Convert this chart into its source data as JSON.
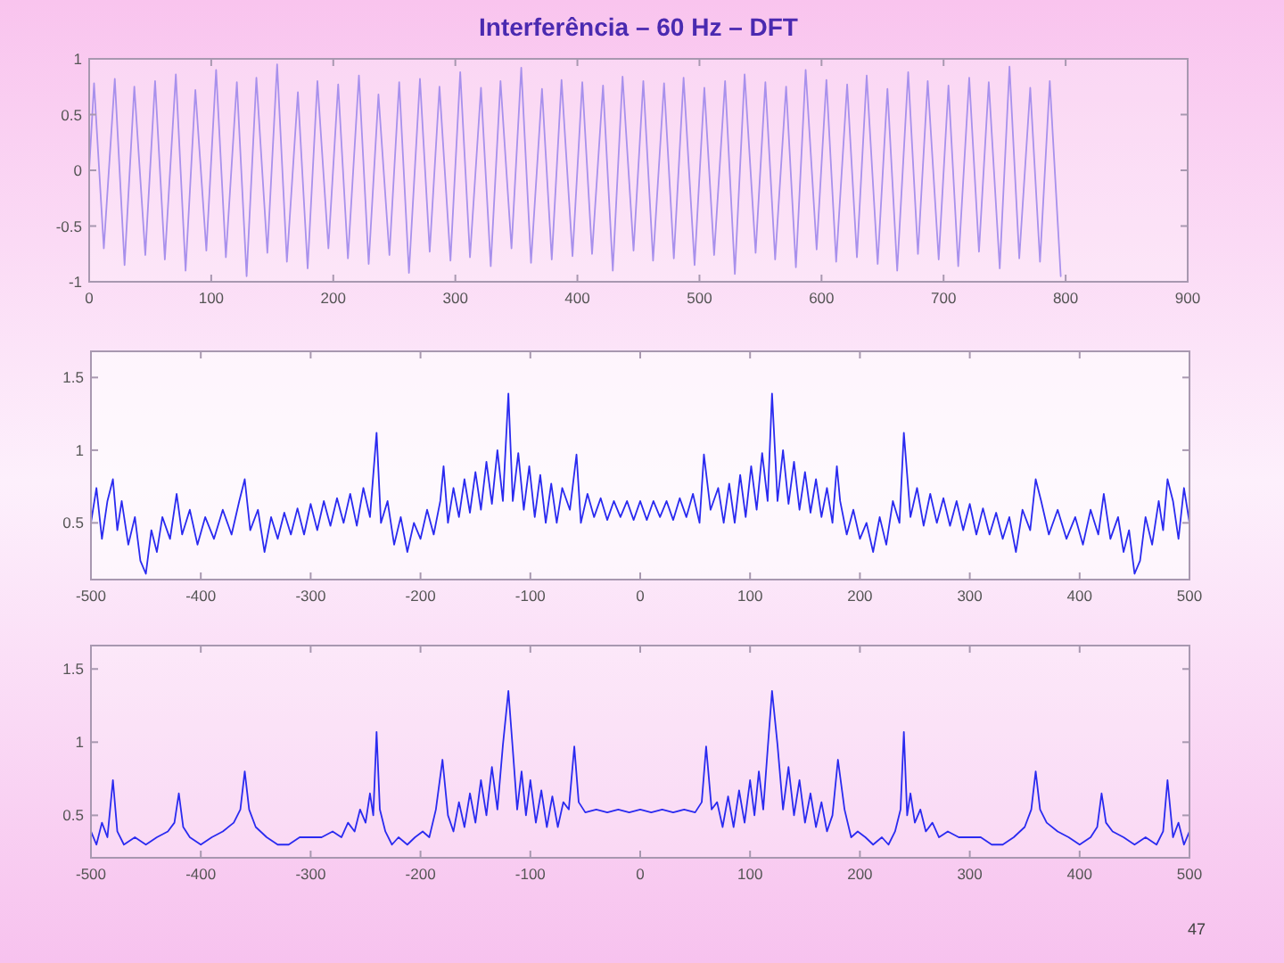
{
  "chart_data": [
    {
      "type": "line",
      "title": "Interferência – 60 Hz – DFT",
      "x": [
        0,
        4,
        12,
        21,
        29,
        37,
        46,
        54,
        62,
        71,
        79,
        87,
        96,
        104,
        112,
        121,
        129,
        137,
        146,
        154,
        162,
        171,
        179,
        187,
        196,
        204,
        212,
        221,
        229,
        237,
        246,
        254,
        262,
        271,
        279,
        287,
        296,
        304,
        312,
        321,
        329,
        337,
        346,
        354,
        362,
        371,
        379,
        387,
        396,
        404,
        412,
        421,
        429,
        437,
        446,
        454,
        462,
        471,
        479,
        487,
        496,
        504,
        512,
        521,
        529,
        537,
        546,
        554,
        562,
        571,
        579,
        587,
        596,
        604,
        612,
        621,
        629,
        637,
        646,
        654,
        662,
        671,
        679,
        687,
        696,
        704,
        712,
        721,
        729,
        737,
        746,
        754,
        762,
        771,
        779,
        787,
        796
      ],
      "series": [
        {
          "color": "#a890ec",
          "values": [
            0,
            0.78,
            -0.7,
            0.82,
            -0.85,
            0.75,
            -0.76,
            0.8,
            -0.8,
            0.86,
            -0.9,
            0.72,
            -0.72,
            0.9,
            -0.78,
            0.79,
            -0.95,
            0.83,
            -0.74,
            0.95,
            -0.82,
            0.7,
            -0.88,
            0.8,
            -0.7,
            0.77,
            -0.79,
            0.85,
            -0.84,
            0.68,
            -0.76,
            0.79,
            -0.92,
            0.82,
            -0.73,
            0.75,
            -0.81,
            0.88,
            -0.78,
            0.74,
            -0.86,
            0.8,
            -0.7,
            0.92,
            -0.83,
            0.73,
            -0.8,
            0.81,
            -0.77,
            0.79,
            -0.75,
            0.76,
            -0.9,
            0.84,
            -0.72,
            0.8,
            -0.81,
            0.78,
            -0.79,
            0.83,
            -0.85,
            0.74,
            -0.76,
            0.8,
            -0.93,
            0.86,
            -0.74,
            0.79,
            -0.8,
            0.75,
            -0.87,
            0.9,
            -0.71,
            0.81,
            -0.82,
            0.77,
            -0.78,
            0.85,
            -0.84,
            0.73,
            -0.9,
            0.88,
            -0.75,
            0.8,
            -0.8,
            0.76,
            -0.86,
            0.83,
            -0.73,
            0.79,
            -0.88,
            0.93,
            -0.79,
            0.74,
            -0.82,
            0.8,
            -0.95
          ]
        }
      ],
      "xlim": [
        0,
        900
      ],
      "ylim": [
        -1,
        1
      ],
      "xticks": [
        0,
        100,
        200,
        300,
        400,
        500,
        600,
        700,
        800,
        900
      ],
      "yticks": [
        -1,
        -0.5,
        0,
        0.5,
        1
      ]
    },
    {
      "type": "line",
      "x": [
        -500,
        -495,
        -490,
        -485,
        -480,
        -476,
        -472,
        -466,
        -460,
        -455,
        -450,
        -445,
        -440,
        -435,
        -428,
        -422,
        -417,
        -410,
        -403,
        -396,
        -388,
        -380,
        -372,
        -365,
        -360,
        -355,
        -348,
        -342,
        -336,
        -330,
        -324,
        -318,
        -312,
        -306,
        -300,
        -294,
        -288,
        -282,
        -276,
        -270,
        -264,
        -258,
        -252,
        -246,
        -240,
        -236,
        -230,
        -224,
        -218,
        -212,
        -206,
        -200,
        -194,
        -188,
        -182,
        -179,
        -175,
        -170,
        -165,
        -160,
        -155,
        -150,
        -145,
        -140,
        -135,
        -130,
        -125,
        -120,
        -116,
        -111,
        -106,
        -101,
        -96,
        -91,
        -86,
        -81,
        -76,
        -71,
        -64,
        -58,
        -54,
        -48,
        -42,
        -36,
        -30,
        -24,
        -18,
        -12,
        -6,
        0,
        6,
        12,
        18,
        24,
        30,
        36,
        42,
        48,
        54,
        58,
        64,
        71,
        76,
        81,
        86,
        91,
        96,
        101,
        106,
        111,
        116,
        120,
        125,
        130,
        135,
        140,
        145,
        150,
        155,
        160,
        165,
        170,
        175,
        179,
        182,
        188,
        194,
        200,
        206,
        212,
        218,
        224,
        230,
        236,
        240,
        246,
        252,
        258,
        264,
        270,
        276,
        282,
        288,
        294,
        300,
        306,
        312,
        318,
        324,
        330,
        336,
        342,
        348,
        355,
        360,
        365,
        372,
        380,
        388,
        396,
        403,
        410,
        417,
        422,
        428,
        435,
        440,
        445,
        450,
        455,
        460,
        466,
        472,
        476,
        480,
        485,
        490,
        495,
        500
      ],
      "series": [
        {
          "color": "#2a2af0",
          "values": [
            0.5,
            0.74,
            0.39,
            0.65,
            0.8,
            0.45,
            0.65,
            0.35,
            0.54,
            0.24,
            0.15,
            0.45,
            0.3,
            0.54,
            0.39,
            0.7,
            0.42,
            0.59,
            0.35,
            0.54,
            0.39,
            0.59,
            0.42,
            0.65,
            0.8,
            0.45,
            0.59,
            0.3,
            0.54,
            0.39,
            0.57,
            0.42,
            0.6,
            0.42,
            0.63,
            0.45,
            0.65,
            0.48,
            0.67,
            0.5,
            0.7,
            0.48,
            0.74,
            0.54,
            1.12,
            0.5,
            0.65,
            0.35,
            0.54,
            0.3,
            0.5,
            0.39,
            0.59,
            0.42,
            0.65,
            0.89,
            0.5,
            0.74,
            0.54,
            0.8,
            0.57,
            0.85,
            0.59,
            0.92,
            0.63,
            1.0,
            0.65,
            1.39,
            0.65,
            0.98,
            0.59,
            0.89,
            0.54,
            0.83,
            0.5,
            0.77,
            0.5,
            0.74,
            0.59,
            0.97,
            0.5,
            0.7,
            0.54,
            0.67,
            0.52,
            0.65,
            0.54,
            0.65,
            0.52,
            0.65,
            0.52,
            0.65,
            0.54,
            0.65,
            0.52,
            0.67,
            0.54,
            0.7,
            0.5,
            0.97,
            0.59,
            0.74,
            0.5,
            0.77,
            0.5,
            0.83,
            0.54,
            0.89,
            0.59,
            0.98,
            0.65,
            1.39,
            0.65,
            1.0,
            0.63,
            0.92,
            0.59,
            0.85,
            0.57,
            0.8,
            0.54,
            0.74,
            0.5,
            0.89,
            0.65,
            0.42,
            0.59,
            0.39,
            0.5,
            0.3,
            0.54,
            0.35,
            0.65,
            0.5,
            1.12,
            0.54,
            0.74,
            0.48,
            0.7,
            0.5,
            0.67,
            0.48,
            0.65,
            0.45,
            0.63,
            0.42,
            0.6,
            0.42,
            0.57,
            0.39,
            0.54,
            0.3,
            0.59,
            0.45,
            0.8,
            0.65,
            0.42,
            0.59,
            0.39,
            0.54,
            0.35,
            0.59,
            0.42,
            0.7,
            0.39,
            0.54,
            0.3,
            0.45,
            0.15,
            0.24,
            0.54,
            0.35,
            0.65,
            0.45,
            0.8,
            0.65,
            0.39,
            0.74,
            0.5
          ]
        }
      ],
      "xlim": [
        -500,
        500
      ],
      "ylim": [
        0.11,
        1.68
      ],
      "xticks": [
        -500,
        -400,
        -300,
        -200,
        -100,
        0,
        100,
        200,
        300,
        400,
        500
      ],
      "yticks": [
        0.5,
        1,
        1.5
      ]
    },
    {
      "type": "line",
      "x": [
        -500,
        -495,
        -490,
        -485,
        -480,
        -476,
        -470,
        -460,
        -450,
        -440,
        -430,
        -424,
        -420,
        -416,
        -410,
        -400,
        -390,
        -380,
        -370,
        -364,
        -360,
        -356,
        -350,
        -340,
        -330,
        -320,
        -310,
        -300,
        -290,
        -280,
        -272,
        -266,
        -260,
        -255,
        -250,
        -246,
        -243,
        -240,
        -237,
        -232,
        -226,
        -220,
        -212,
        -205,
        -198,
        -192,
        -186,
        -180,
        -175,
        -170,
        -165,
        -160,
        -155,
        -150,
        -145,
        -140,
        -135,
        -130,
        -125,
        -120,
        -116,
        -112,
        -108,
        -104,
        -100,
        -95,
        -90,
        -85,
        -80,
        -75,
        -70,
        -65,
        -60,
        -56,
        -50,
        -40,
        -30,
        -20,
        -10,
        0,
        10,
        20,
        30,
        40,
        50,
        56,
        60,
        65,
        70,
        75,
        80,
        85,
        90,
        95,
        100,
        104,
        108,
        112,
        116,
        120,
        125,
        130,
        135,
        140,
        145,
        150,
        155,
        160,
        165,
        170,
        175,
        180,
        186,
        192,
        198,
        205,
        212,
        220,
        226,
        232,
        237,
        240,
        243,
        246,
        250,
        255,
        260,
        266,
        272,
        280,
        290,
        300,
        310,
        320,
        330,
        340,
        350,
        356,
        360,
        364,
        370,
        380,
        390,
        400,
        410,
        416,
        420,
        424,
        430,
        440,
        450,
        460,
        470,
        476,
        480,
        485,
        490,
        495,
        500
      ],
      "series": [
        {
          "color": "#2a2af0",
          "values": [
            0.39,
            0.3,
            0.45,
            0.35,
            0.74,
            0.39,
            0.3,
            0.35,
            0.3,
            0.35,
            0.39,
            0.45,
            0.65,
            0.42,
            0.35,
            0.3,
            0.35,
            0.39,
            0.45,
            0.54,
            0.8,
            0.54,
            0.42,
            0.35,
            0.3,
            0.3,
            0.35,
            0.35,
            0.35,
            0.39,
            0.35,
            0.45,
            0.39,
            0.54,
            0.45,
            0.65,
            0.5,
            1.07,
            0.54,
            0.39,
            0.3,
            0.35,
            0.3,
            0.35,
            0.39,
            0.35,
            0.54,
            0.88,
            0.5,
            0.39,
            0.59,
            0.42,
            0.65,
            0.45,
            0.74,
            0.5,
            0.83,
            0.54,
            0.98,
            1.35,
            0.95,
            0.54,
            0.8,
            0.5,
            0.74,
            0.45,
            0.67,
            0.42,
            0.63,
            0.42,
            0.59,
            0.54,
            0.97,
            0.59,
            0.52,
            0.54,
            0.52,
            0.54,
            0.52,
            0.54,
            0.52,
            0.54,
            0.52,
            0.54,
            0.52,
            0.59,
            0.97,
            0.54,
            0.59,
            0.42,
            0.63,
            0.42,
            0.67,
            0.45,
            0.74,
            0.5,
            0.8,
            0.54,
            0.95,
            1.35,
            0.98,
            0.54,
            0.83,
            0.5,
            0.74,
            0.45,
            0.65,
            0.42,
            0.59,
            0.39,
            0.5,
            0.88,
            0.54,
            0.35,
            0.39,
            0.35,
            0.3,
            0.35,
            0.3,
            0.39,
            0.54,
            1.07,
            0.5,
            0.65,
            0.45,
            0.54,
            0.39,
            0.45,
            0.35,
            0.39,
            0.35,
            0.35,
            0.35,
            0.3,
            0.3,
            0.35,
            0.42,
            0.54,
            0.8,
            0.54,
            0.45,
            0.39,
            0.35,
            0.3,
            0.35,
            0.42,
            0.65,
            0.45,
            0.39,
            0.35,
            0.3,
            0.35,
            0.3,
            0.39,
            0.74,
            0.35,
            0.45,
            0.3,
            0.39
          ]
        }
      ],
      "xlim": [
        -500,
        500
      ],
      "ylim": [
        0.21,
        1.66
      ],
      "xticks": [
        -500,
        -400,
        -300,
        -200,
        -100,
        0,
        100,
        200,
        300,
        400,
        500
      ],
      "yticks": [
        0.5,
        1,
        1.5
      ],
      "annotations": [
        "47"
      ]
    }
  ]
}
